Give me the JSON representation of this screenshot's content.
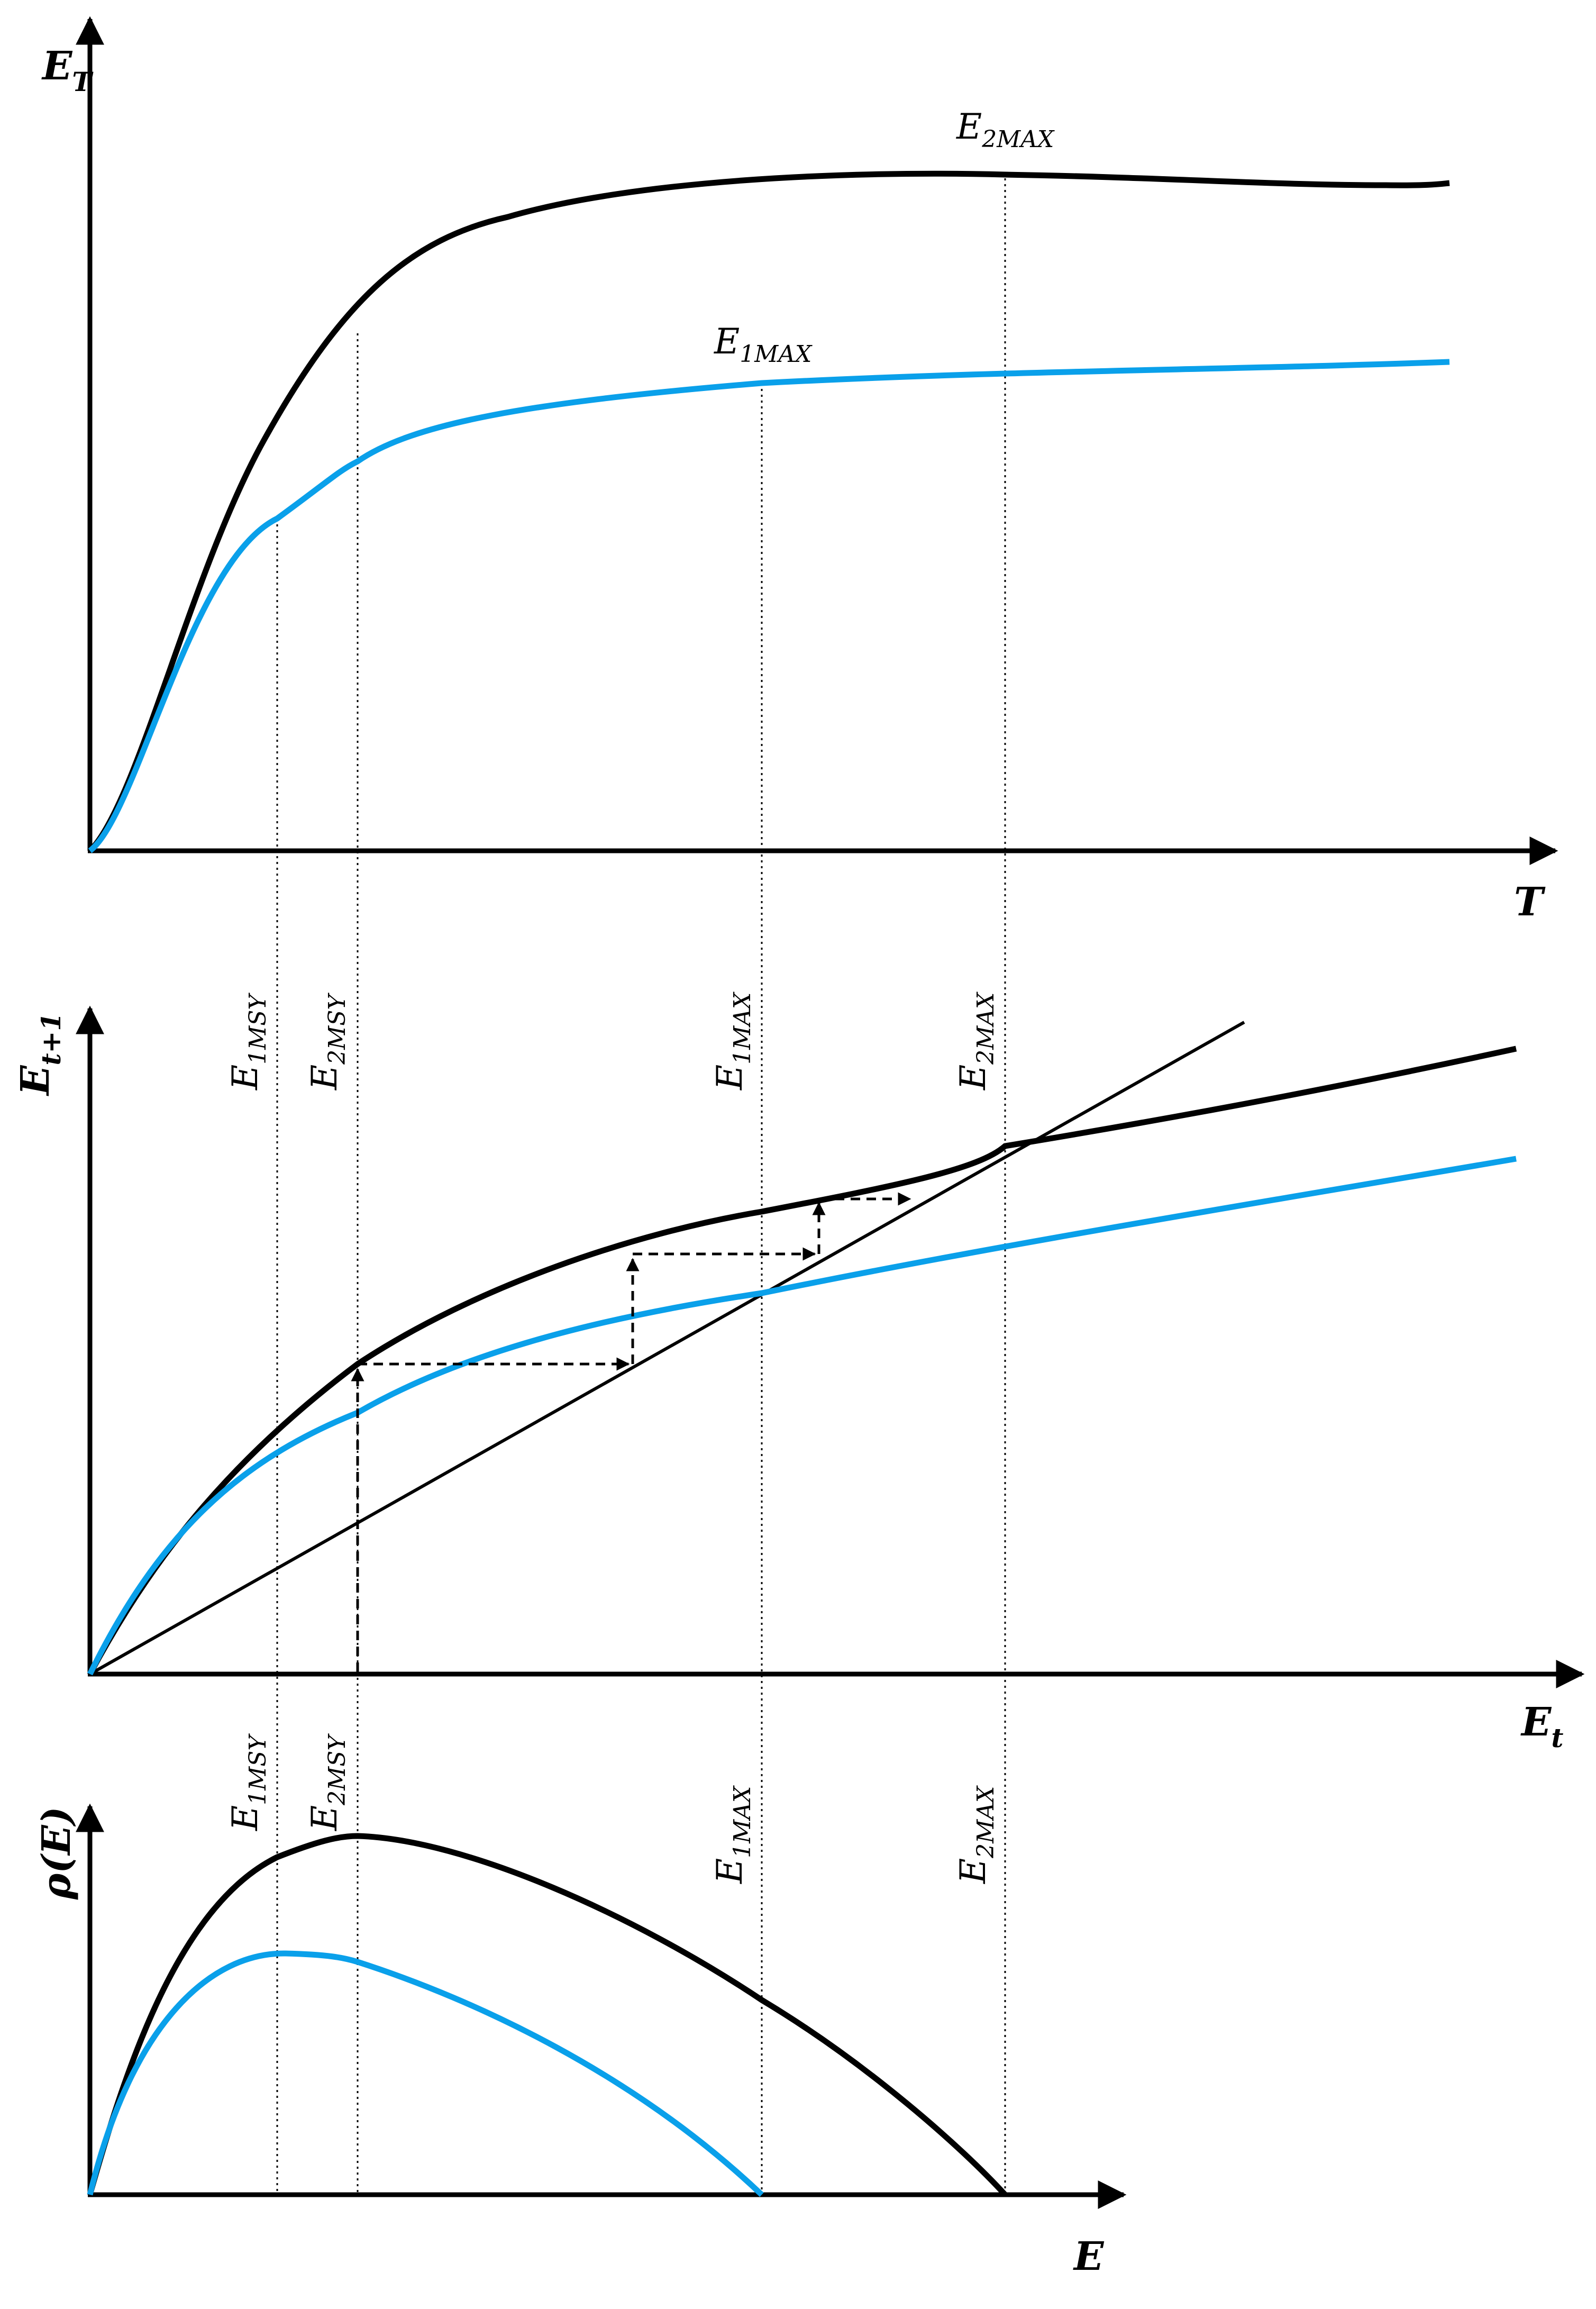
{
  "colors": {
    "black_curve": "#000000",
    "blue_curve": "#0AA0EA",
    "guide": "#000000"
  },
  "panel_top": {
    "ylabel": {
      "main": "E",
      "sub": "T"
    },
    "xlabel": "T",
    "labels": [
      {
        "id": "e2max",
        "main": "E",
        "sub": "2MAX"
      },
      {
        "id": "e1max",
        "main": "E",
        "sub": "1MAX"
      }
    ]
  },
  "panel_mid": {
    "ylabel": {
      "main": "E",
      "sub": "t+1"
    },
    "xlabel": {
      "main": "E",
      "sub": "t"
    },
    "top_labels": [
      {
        "main": "E",
        "sub": "1MSY"
      },
      {
        "main": "E",
        "sub": "2MSY"
      },
      {
        "main": "E",
        "sub": "1MAX"
      },
      {
        "main": "E",
        "sub": "2MAX"
      }
    ],
    "bottom_labels": [
      {
        "main": "E",
        "sub": "1MSY"
      },
      {
        "main": "E",
        "sub": "2MSY"
      },
      {
        "main": "E",
        "sub": "1MAX"
      },
      {
        "main": "E",
        "sub": "2MAX"
      }
    ]
  },
  "panel_bot": {
    "ylabel": "ρ(E)",
    "xlabel": "E"
  }
}
